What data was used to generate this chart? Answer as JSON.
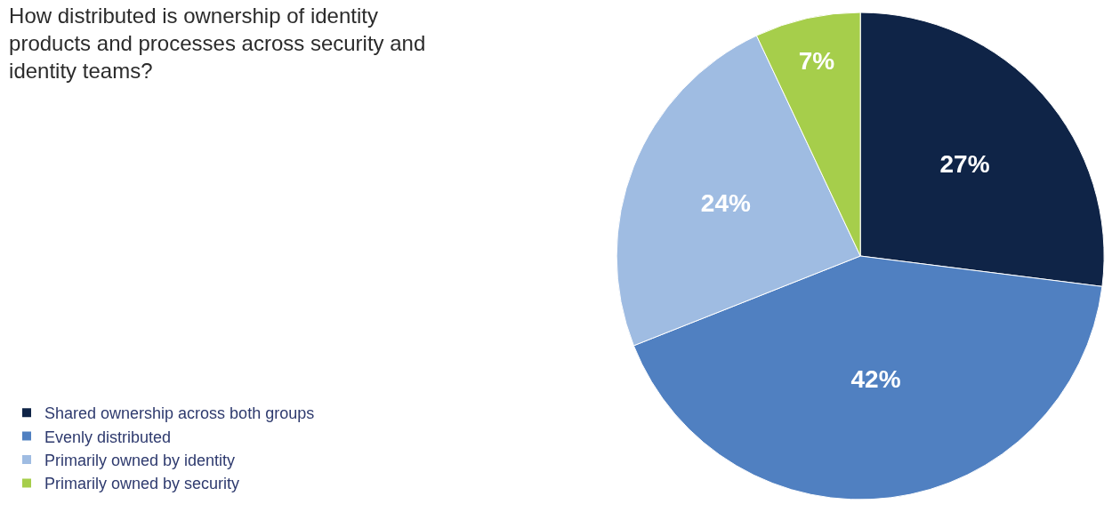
{
  "chart_data": {
    "type": "pie",
    "title": "How distributed is ownership of identity products and processes across security and identity teams?",
    "categories": [
      "Shared ownership across both groups",
      "Evenly distributed",
      "Primarily owned by identity",
      "Primarily owned by security"
    ],
    "values": [
      27,
      42,
      24,
      7
    ],
    "value_labels": [
      "27%",
      "42%",
      "24%",
      "7%"
    ],
    "colors": [
      "#0f2447",
      "#5080c1",
      "#9fbce2",
      "#a6ce4b"
    ],
    "legend": "bottom left"
  }
}
